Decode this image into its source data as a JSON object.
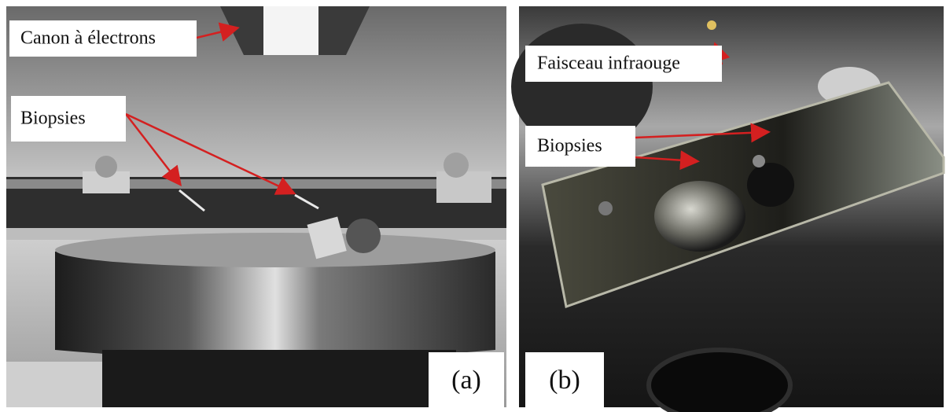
{
  "panels": [
    {
      "labels": [
        "Canon à électrons",
        "Biopsies"
      ],
      "tag": "(a)"
    },
    {
      "labels": [
        "Faisceau infraouge",
        "Biopsies"
      ],
      "tag": "(b)"
    }
  ]
}
